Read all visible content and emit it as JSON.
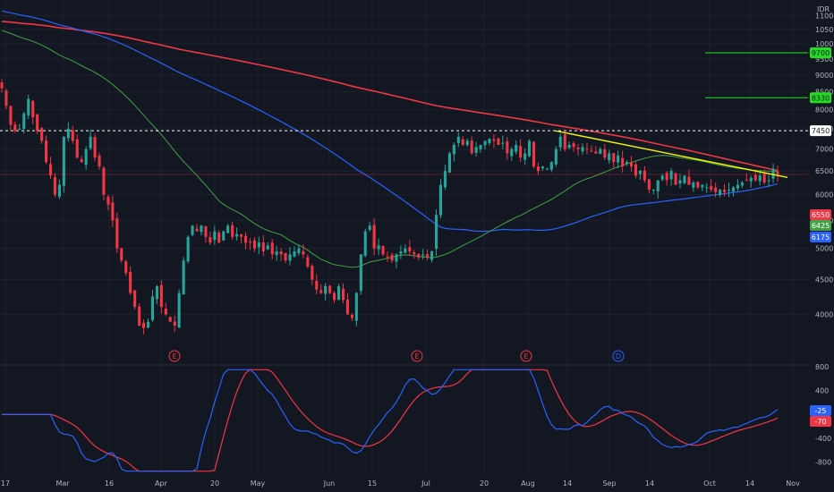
{
  "chart_data": [
    {
      "type": "candlestick",
      "currency": "IDR",
      "ylim": [
        3400,
        11600
      ],
      "scale": "log",
      "y_ticks": [
        4000,
        4500,
        5000,
        5500,
        6000,
        6500,
        7000,
        7500,
        8000,
        8500,
        9000,
        9500,
        10000,
        10500,
        11000
      ],
      "y_tick_labels": [
        "4000",
        "4500",
        "5000",
        "5500",
        "6000",
        "6500",
        "7000",
        "7500",
        "8000",
        "8500",
        "9000",
        "9500",
        "10000",
        "10500",
        "11000"
      ],
      "x_tick_labels": [
        "17",
        "Mar",
        "16",
        "Apr",
        "20",
        "May",
        "Jun",
        "15",
        "Jul",
        "20",
        "Aug",
        "14",
        "Sep",
        "14",
        "Oct",
        "14",
        "Nov"
      ],
      "closes": [
        8600,
        8100,
        7600,
        7450,
        7500,
        7900,
        8300,
        7800,
        7450,
        7200,
        6700,
        6400,
        6000,
        6200,
        7300,
        7500,
        7200,
        6800,
        6700,
        7000,
        7300,
        6800,
        6600,
        6000,
        5800,
        5500,
        5000,
        4800,
        4600,
        4300,
        4100,
        3850,
        3820,
        3900,
        4250,
        4400,
        4100,
        4000,
        3900,
        3850,
        4300,
        4800,
        5200,
        5400,
        5300,
        5400,
        5200,
        5100,
        5300,
        5100,
        5300,
        5400,
        5200,
        5250,
        5200,
        5100,
        5100,
        5000,
        5100,
        4950,
        5050,
        4900,
        4950,
        4900,
        4800,
        4900,
        4950,
        5000,
        4900,
        4700,
        4500,
        4350,
        4300,
        4400,
        4300,
        4200,
        4400,
        4200,
        4000,
        3950,
        4300,
        4900,
        5300,
        5400,
        5000,
        5050,
        4900,
        4850,
        4800,
        4900,
        4950,
        5000,
        4950,
        4900,
        4850,
        4900,
        4850,
        4950,
        5600,
        6200,
        6500,
        6900,
        7100,
        7300,
        7100,
        7200,
        6900,
        7050,
        7100,
        7200,
        7250,
        7200,
        7100,
        7150,
        6900,
        7000,
        7100,
        6800,
        6900,
        7200,
        6600,
        6500,
        6600,
        6550,
        6700,
        7000,
        7300,
        7000,
        7100,
        7050,
        7000,
        7050,
        7000,
        6950,
        6900,
        7000,
        6800,
        6900,
        6700,
        6850,
        6600,
        6700,
        6600,
        6400,
        6500,
        6300,
        6100,
        6100,
        6300,
        6400,
        6300,
        6500,
        6200,
        6300,
        6400,
        6200,
        6250,
        6150,
        6200,
        6150,
        6100,
        6050,
        6100,
        6050,
        6100,
        6150,
        6200,
        6250,
        6300,
        6350,
        6300,
        6400,
        6250,
        6300,
        6550,
        6425
      ],
      "price_levels": [
        {
          "price": 9700,
          "label": "9700",
          "color": "#22bb22"
        },
        {
          "price": 8330,
          "label": "8330",
          "color": "#22bb22"
        },
        {
          "price": 7450,
          "label": "7450",
          "color": "#ffffff",
          "style": "dashed"
        }
      ],
      "current_labels": [
        {
          "price": 6550,
          "label": "6550",
          "color": "#f23645"
        },
        {
          "price": 6425,
          "label": "6425",
          "color": "#43a047"
        },
        {
          "price": 6175,
          "label": "6175",
          "color": "#2962ff"
        }
      ],
      "event_markers": [
        {
          "label": "E",
          "color": "#f23645",
          "index": 30
        },
        {
          "label": "E",
          "color": "#f23645",
          "index": 79
        },
        {
          "label": "E",
          "color": "#f23645",
          "index": 101
        },
        {
          "label": "D",
          "color": "#2962ff",
          "index": 125
        }
      ],
      "colors": {
        "up": "#26a69a",
        "down": "#f23645",
        "ma_red": "#f23645",
        "ma_blue": "#2962ff",
        "ma_green": "#43a047",
        "trendline": "#f6f600"
      }
    },
    {
      "type": "line",
      "name": "MACD",
      "ylim": [
        -1000,
        800
      ],
      "y_ticks": [
        800,
        400,
        -400,
        -800
      ],
      "y_tick_labels": [
        "800",
        "400",
        "-400",
        "-800"
      ],
      "current_labels": [
        {
          "value": -25,
          "label": "-25",
          "color": "#2962ff"
        },
        {
          "value": -70,
          "label": "-70",
          "color": "#f23645"
        }
      ]
    }
  ]
}
